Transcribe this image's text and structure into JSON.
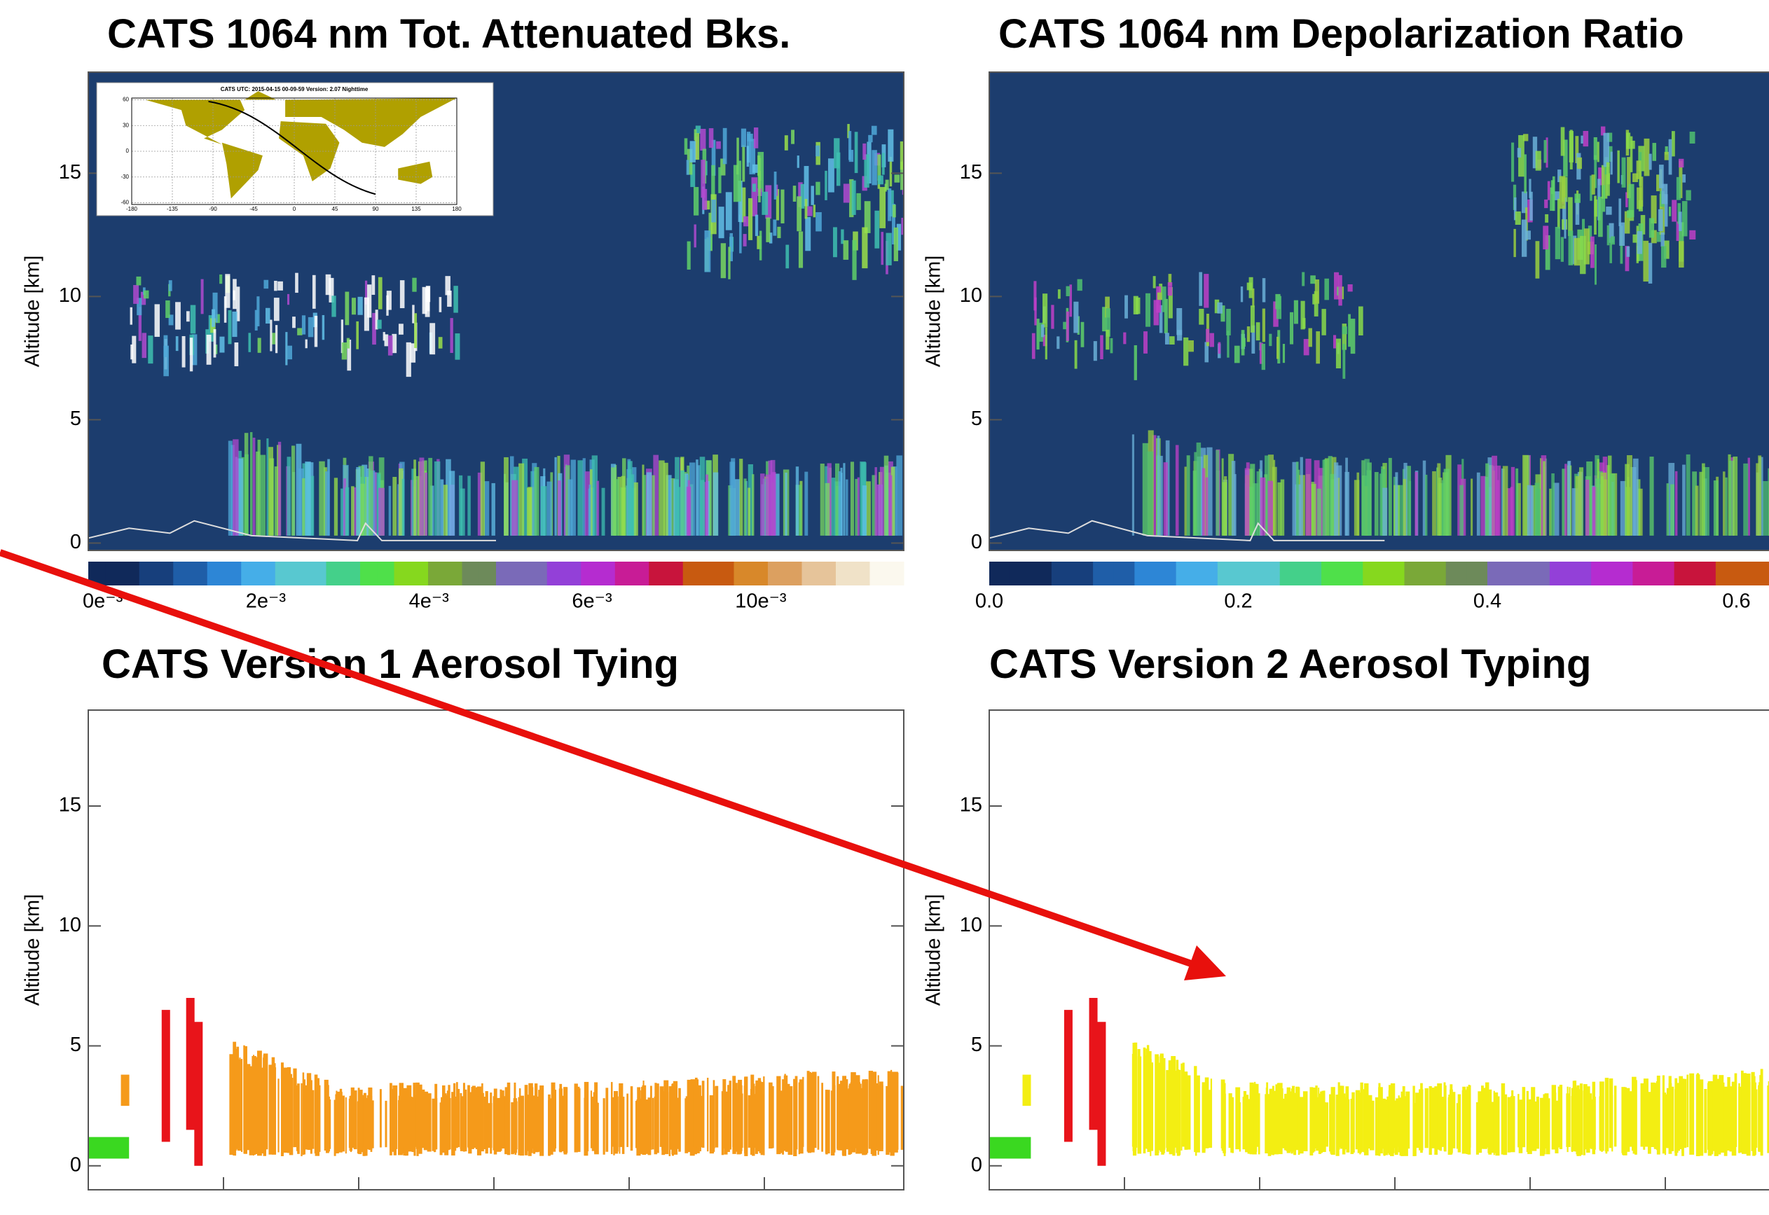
{
  "chart_data": [
    {
      "type": "curtain",
      "title": "CATS 1064 nm Tot. Attenuated Bks.",
      "ylabel": "Altitude [km]",
      "ylim": [
        -0.3,
        19.1
      ],
      "yticks": [
        0,
        5,
        10,
        15
      ],
      "colorbar_labels": [
        "0e⁻³",
        "2e⁻³",
        "4e⁻³",
        "6e⁻³",
        "10e⁻³"
      ],
      "inset": {
        "title": "CATS  UTC: 2015-04-15  00-09-59   Version: 2.07   Nighttime",
        "xlim": [
          -180,
          180
        ],
        "ylim": [
          -62,
          62
        ],
        "xticks": [
          -180,
          -135,
          -90,
          -45,
          0,
          45,
          90,
          135,
          180
        ],
        "yticks": [
          60,
          30,
          0,
          -30,
          -60
        ]
      }
    },
    {
      "type": "curtain",
      "title": "CATS 1064 nm Depolarization Ratio",
      "ylabel": "Altitude [km]",
      "ylim": [
        -0.3,
        19.1
      ],
      "yticks": [
        0,
        5,
        10,
        15
      ],
      "clim": [
        0,
        0.8
      ],
      "cticks": [
        0.0,
        0.2,
        0.4,
        0.6
      ]
    },
    {
      "type": "typing",
      "title": "CATS Version 1 Aerosol Tying",
      "ylabel": "Altitude [km]",
      "ylim": [
        -1,
        19
      ],
      "yticks": [
        0,
        5,
        10,
        15
      ],
      "color": "#f59a1a"
    },
    {
      "type": "typing",
      "title": "CATS Version 2 Aerosol Typing",
      "ylabel": "Altitude [km]",
      "ylim": [
        -1,
        19
      ],
      "yticks": [
        0,
        5,
        10,
        15
      ],
      "color": "#f3ee12"
    }
  ]
}
